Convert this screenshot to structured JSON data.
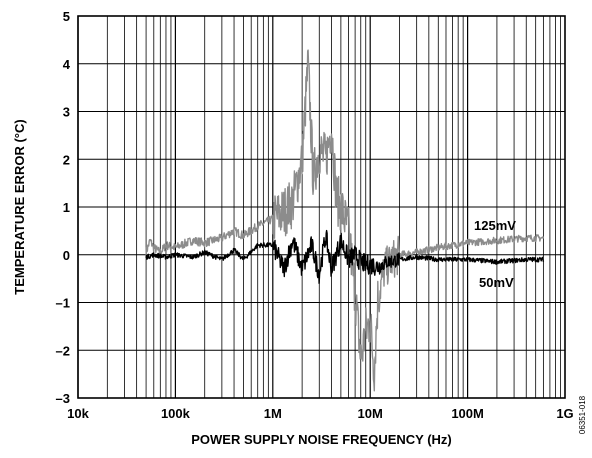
{
  "chart_data": {
    "type": "line",
    "title": "",
    "xlabel": "POWER SUPPLY NOISE FREQUENCY (Hz)",
    "ylabel": "TEMPERATURE ERROR (°C)",
    "x_scale": "log",
    "xlim": [
      10000,
      1000000000
    ],
    "ylim": [
      -3,
      5
    ],
    "grid": true,
    "x_tick_values": [
      10000,
      100000,
      1000000,
      10000000,
      100000000,
      1000000000
    ],
    "x_tick_labels": [
      "10k",
      "100k",
      "1M",
      "10M",
      "100M",
      "1G"
    ],
    "y_tick_values": [
      -3,
      -2,
      -1,
      0,
      1,
      2,
      3,
      4,
      5
    ],
    "y_tick_labels": [
      "–3",
      "–2",
      "–1",
      "0",
      "1",
      "2",
      "3",
      "4",
      "5"
    ],
    "series": [
      {
        "name": "125mV",
        "color": "#8c8c8c",
        "x": [
          50000,
          55000,
          60000,
          70000,
          80000,
          100000,
          150000,
          200000,
          300000,
          400000,
          500000,
          700000,
          1000000,
          1300000,
          1600000,
          2000000,
          2300000,
          2600000,
          3000000,
          3500000,
          4000000,
          4500000,
          5000000,
          6000000,
          7000000,
          8000000,
          9000000,
          10000000,
          11000000,
          12000000,
          14000000,
          17000000,
          20000000,
          30000000,
          50000000,
          100000000,
          200000000,
          400000000,
          600000000
        ],
        "y": [
          0.05,
          0.3,
          0.15,
          0.05,
          0.2,
          0.15,
          0.3,
          0.25,
          0.35,
          0.5,
          0.4,
          0.6,
          0.75,
          0.9,
          1.1,
          2.0,
          4.0,
          1.6,
          2.2,
          2.0,
          2.7,
          1.2,
          1.0,
          0.5,
          -0.8,
          -2.2,
          -1.6,
          -1.4,
          -2.4,
          -0.9,
          -0.3,
          -0.1,
          0.0,
          0.05,
          0.15,
          0.25,
          0.3,
          0.35,
          0.35
        ],
        "label_text": "125mV"
      },
      {
        "name": "50mV",
        "color": "#000000",
        "x": [
          50000,
          60000,
          80000,
          100000,
          150000,
          200000,
          300000,
          400000,
          500000,
          700000,
          1000000,
          1300000,
          1600000,
          2000000,
          2500000,
          3000000,
          3500000,
          4000000,
          5000000,
          6000000,
          7000000,
          8000000,
          9000000,
          10000000,
          12000000,
          15000000,
          20000000,
          30000000,
          50000000,
          100000000,
          200000000,
          400000000,
          600000000
        ],
        "y": [
          -0.05,
          0.0,
          -0.05,
          0.0,
          -0.05,
          0.05,
          -0.1,
          0.1,
          -0.1,
          0.2,
          0.2,
          -0.3,
          0.3,
          -0.3,
          0.2,
          -0.4,
          0.4,
          -0.3,
          0.3,
          -0.1,
          0.0,
          -0.15,
          -0.2,
          -0.2,
          -0.25,
          -0.15,
          -0.1,
          -0.05,
          -0.1,
          -0.1,
          -0.15,
          -0.1,
          -0.1
        ],
        "label_text": "50mV"
      }
    ],
    "figure_id": "06351-018"
  }
}
